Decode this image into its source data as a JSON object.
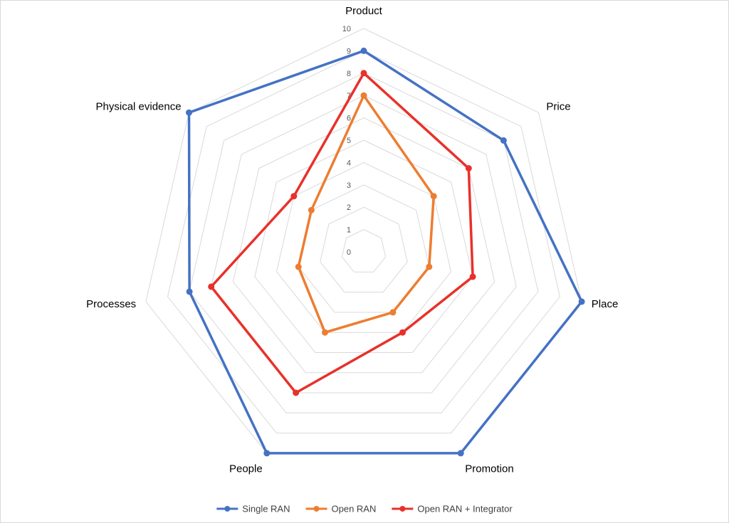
{
  "chart_data": {
    "type": "radar",
    "title": "",
    "axes": [
      "Product",
      "Price",
      "Place",
      "Promotion",
      "People",
      "Processes",
      "Physical evidence"
    ],
    "range": [
      0,
      10
    ],
    "ticks": [
      0,
      1,
      2,
      3,
      4,
      5,
      6,
      7,
      8,
      9,
      10
    ],
    "grid": true,
    "legend_position": "bottom",
    "series": [
      {
        "name": "Single RAN",
        "color": "#4472c4",
        "values": [
          9,
          8,
          10,
          10,
          10,
          8,
          10
        ]
      },
      {
        "name": "Open RAN",
        "color": "#ed7d31",
        "values": [
          7,
          4,
          3,
          3,
          4,
          3,
          3
        ]
      },
      {
        "name": "Open RAN + Integrator",
        "color": "#e8312a",
        "values": [
          8,
          6,
          5,
          4,
          7,
          7,
          4
        ]
      }
    ]
  }
}
